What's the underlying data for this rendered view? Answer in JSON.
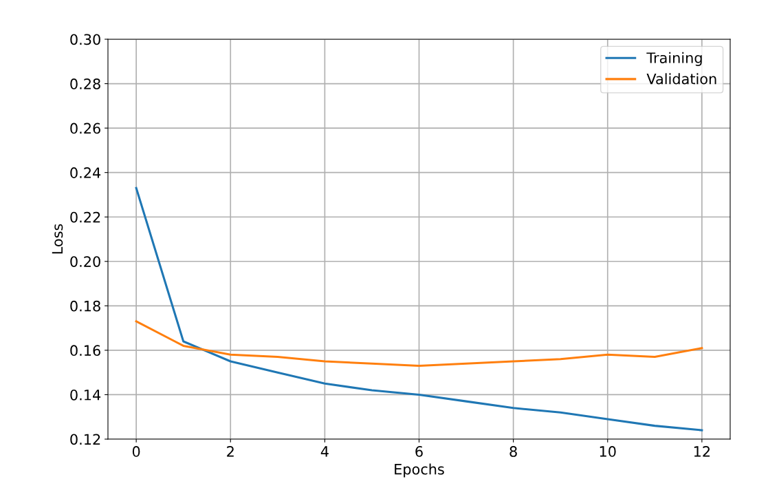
{
  "chart_data": {
    "type": "line",
    "xlabel": "Epochs",
    "ylabel": "Loss",
    "x": [
      0,
      1,
      2,
      3,
      4,
      5,
      6,
      7,
      8,
      9,
      10,
      11,
      12
    ],
    "series": [
      {
        "name": "Training",
        "color": "#1f77b4",
        "values": [
          0.233,
          0.164,
          0.155,
          0.15,
          0.145,
          0.142,
          0.14,
          0.137,
          0.134,
          0.132,
          0.129,
          0.126,
          0.124
        ]
      },
      {
        "name": "Validation",
        "color": "#ff7f0e",
        "values": [
          0.173,
          0.162,
          0.158,
          0.157,
          0.155,
          0.154,
          0.153,
          0.154,
          0.155,
          0.156,
          0.158,
          0.157,
          0.161
        ]
      }
    ],
    "xlim": [
      -0.6,
      12.6
    ],
    "xticks": [
      0,
      2,
      4,
      6,
      8,
      10,
      12
    ],
    "ylim": [
      0.12,
      0.3
    ],
    "yticks": [
      {
        "value": 0.12,
        "label": "0.12"
      },
      {
        "value": 0.14,
        "label": "0.14"
      },
      {
        "value": 0.16,
        "label": "0.16"
      },
      {
        "value": 0.18,
        "label": "0.18"
      },
      {
        "value": 0.2,
        "label": "0.20"
      },
      {
        "value": 0.22,
        "label": "0.22"
      },
      {
        "value": 0.24,
        "label": "0.24"
      },
      {
        "value": 0.26,
        "label": "0.26"
      },
      {
        "value": 0.28,
        "label": "0.28"
      },
      {
        "value": 0.3,
        "label": "0.30"
      }
    ],
    "grid": true,
    "legend": "top right"
  }
}
